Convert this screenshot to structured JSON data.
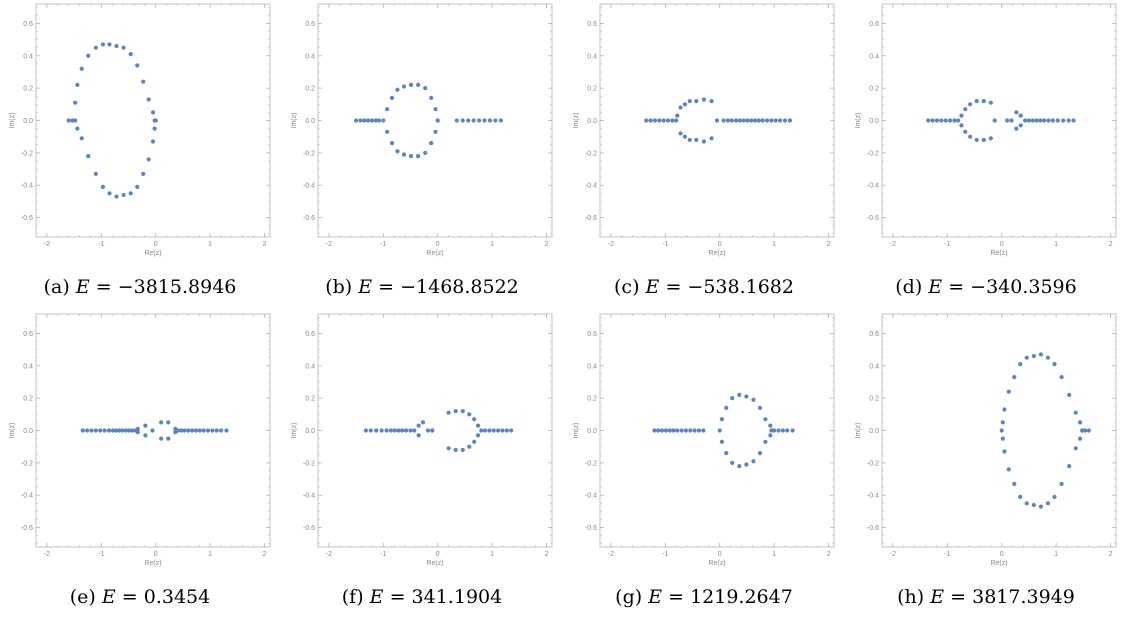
{
  "style": {
    "point_color": "#5b84c4",
    "frame_color": "#b5b5b5"
  },
  "axes": {
    "xlabel": "Re(z)",
    "ylabel": "Im(z)",
    "xlim": [
      -2.2,
      2.1
    ],
    "ylim": [
      -0.72,
      0.72
    ],
    "xticks": [
      -2,
      -1,
      0,
      1,
      2
    ],
    "yticks": [
      -0.6,
      -0.4,
      -0.2,
      0.0,
      0.2,
      0.4,
      0.6
    ],
    "xtick_labels": [
      "-2",
      "-1",
      "0",
      "1",
      "2"
    ],
    "ytick_labels": [
      "-0.6",
      "-0.4",
      "-0.2",
      "0.0",
      "0.2",
      "0.4",
      "0.6"
    ]
  },
  "chart_data": [
    {
      "type": "scatter",
      "title": "",
      "caption": {
        "label": "(a)",
        "value": "−3815.8946"
      },
      "x": [
        -1.6,
        -1.53,
        -1.48,
        -1.44,
        -1.36,
        -1.24,
        -1.1,
        -0.97,
        -0.85,
        -0.72,
        -0.59,
        -0.46,
        -0.34,
        -0.23,
        -0.13,
        -0.05,
        -0.02,
        0.0,
        -0.02,
        -0.05,
        -0.13,
        -0.23,
        -0.34,
        -0.46,
        -0.59,
        -0.72,
        -0.85,
        -0.97,
        -1.1,
        -1.24,
        -1.36,
        -1.44,
        -1.48
      ],
      "y": [
        0.0,
        0.0,
        0.11,
        0.22,
        0.32,
        0.4,
        0.45,
        0.47,
        0.47,
        0.46,
        0.45,
        0.41,
        0.34,
        0.24,
        0.13,
        0.05,
        0.0,
        0.0,
        -0.05,
        -0.13,
        -0.24,
        -0.33,
        -0.41,
        -0.45,
        -0.46,
        -0.47,
        -0.45,
        -0.41,
        -0.33,
        -0.22,
        -0.11,
        -0.05,
        0.0
      ]
    },
    {
      "type": "scatter",
      "title": "",
      "caption": {
        "label": "(b)",
        "value": "−1468.8522"
      },
      "x": [
        -1.5,
        -1.42,
        -1.35,
        -1.28,
        -1.21,
        -1.14,
        -1.08,
        -1.0,
        -0.93,
        -0.84,
        -0.74,
        -0.62,
        -0.49,
        -0.36,
        -0.23,
        -0.12,
        -0.04,
        0.0,
        -0.04,
        -0.12,
        -0.23,
        -0.36,
        -0.49,
        -0.62,
        -0.74,
        -0.84,
        -0.93,
        0.35,
        0.46,
        0.56,
        0.66,
        0.76,
        0.86,
        0.96,
        1.06,
        1.16
      ],
      "y": [
        0.0,
        0.0,
        0.0,
        0.0,
        0.0,
        0.0,
        0.0,
        0.0,
        0.07,
        0.14,
        0.19,
        0.21,
        0.22,
        0.22,
        0.2,
        0.14,
        0.07,
        0.0,
        -0.07,
        -0.14,
        -0.2,
        -0.22,
        -0.22,
        -0.21,
        -0.19,
        -0.14,
        -0.07,
        0.0,
        0.0,
        0.0,
        0.0,
        0.0,
        0.0,
        0.0,
        0.0,
        0.0
      ]
    },
    {
      "type": "scatter",
      "title": "",
      "caption": {
        "label": "(c)",
        "value": "−538.1682"
      },
      "x": [
        -1.35,
        -1.27,
        -1.19,
        -1.11,
        -1.03,
        -0.95,
        -0.87,
        -0.8,
        -0.78,
        -0.72,
        -0.64,
        -0.55,
        -0.43,
        -0.29,
        -0.15,
        -0.05,
        -0.15,
        -0.29,
        -0.43,
        -0.55,
        -0.64,
        -0.72,
        0.07,
        0.15,
        0.22,
        0.3,
        0.37,
        0.44,
        0.51,
        0.58,
        0.65,
        0.72,
        0.79,
        0.87,
        0.95,
        1.03,
        1.11,
        1.2,
        1.29
      ],
      "y": [
        0.0,
        0.0,
        0.0,
        0.0,
        0.0,
        0.0,
        0.0,
        0.0,
        0.03,
        0.08,
        0.1,
        0.12,
        0.12,
        0.13,
        0.12,
        0.0,
        -0.11,
        -0.13,
        -0.12,
        -0.12,
        -0.1,
        -0.08,
        0.0,
        0.0,
        0.0,
        0.0,
        0.0,
        0.0,
        0.0,
        0.0,
        0.0,
        0.0,
        0.0,
        0.0,
        0.0,
        0.0,
        0.0,
        0.0,
        0.0
      ]
    },
    {
      "type": "scatter",
      "title": "",
      "caption": {
        "label": "(d)",
        "value": "−340.3596"
      },
      "x": [
        -1.35,
        -1.27,
        -1.19,
        -1.11,
        -1.03,
        -0.95,
        -0.87,
        -0.8,
        -0.74,
        -0.67,
        -0.58,
        -0.46,
        -0.33,
        -0.2,
        -0.13,
        -0.2,
        -0.33,
        -0.46,
        -0.58,
        -0.67,
        -0.74,
        0.1,
        0.18,
        0.27,
        0.35,
        0.27,
        0.35,
        0.43,
        0.5,
        0.57,
        0.64,
        0.71,
        0.78,
        0.86,
        0.94,
        1.03,
        1.13,
        1.23,
        1.32
      ],
      "y": [
        0.0,
        0.0,
        0.0,
        0.0,
        0.0,
        0.0,
        0.0,
        0.0,
        0.03,
        0.07,
        0.1,
        0.12,
        0.12,
        0.11,
        0.0,
        -0.11,
        -0.12,
        -0.12,
        -0.1,
        -0.07,
        -0.03,
        0.0,
        0.0,
        0.05,
        0.03,
        -0.05,
        -0.03,
        0.0,
        0.0,
        0.0,
        0.0,
        0.0,
        0.0,
        0.0,
        0.0,
        0.0,
        0.0,
        0.0,
        0.0
      ]
    },
    {
      "type": "scatter",
      "title": "",
      "caption": {
        "label": "(e)",
        "value": "0.3454"
      },
      "x": [
        -1.34,
        -1.26,
        -1.18,
        -1.1,
        -1.02,
        -0.94,
        -0.86,
        -0.79,
        -0.73,
        -0.67,
        -0.61,
        -0.55,
        -0.49,
        -0.43,
        -0.37,
        -0.33,
        -0.33,
        -0.19,
        -0.19,
        -0.06,
        0.1,
        0.1,
        0.23,
        0.23,
        0.36,
        0.36,
        0.41,
        0.47,
        0.53,
        0.6,
        0.67,
        0.74,
        0.81,
        0.88,
        0.96,
        1.04,
        1.12,
        1.2,
        1.3
      ],
      "y": [
        0.0,
        0.0,
        0.0,
        0.0,
        0.0,
        0.0,
        0.0,
        0.0,
        0.0,
        0.0,
        0.0,
        0.0,
        0.0,
        0.0,
        0.0,
        0.01,
        -0.01,
        0.03,
        -0.03,
        0.0,
        0.05,
        -0.05,
        0.05,
        -0.05,
        0.01,
        -0.01,
        0.0,
        0.0,
        0.0,
        0.0,
        0.0,
        0.0,
        0.0,
        0.0,
        0.0,
        0.0,
        0.0,
        0.0,
        0.0
      ]
    },
    {
      "type": "scatter",
      "title": "",
      "caption": {
        "label": "(f)",
        "value": "341.1904"
      },
      "x": [
        -1.32,
        -1.23,
        -1.13,
        -1.03,
        -0.94,
        -0.86,
        -0.79,
        -0.72,
        -0.65,
        -0.58,
        -0.5,
        -0.43,
        -0.35,
        -0.35,
        -0.27,
        -0.18,
        -0.1,
        -0.1,
        0.2,
        0.33,
        0.46,
        0.58,
        0.67,
        0.74,
        0.8,
        0.87,
        0.95,
        1.03,
        1.11,
        1.19,
        1.27,
        1.35,
        0.2,
        0.33,
        0.46,
        0.58,
        0.67,
        0.74
      ],
      "y": [
        0.0,
        0.0,
        0.0,
        0.0,
        0.0,
        0.0,
        0.0,
        0.0,
        0.0,
        0.0,
        0.0,
        0.0,
        0.03,
        -0.03,
        0.05,
        0.0,
        0.0,
        0.0,
        0.11,
        0.12,
        0.12,
        0.1,
        0.07,
        0.03,
        0.0,
        0.0,
        0.0,
        0.0,
        0.0,
        0.0,
        0.0,
        0.0,
        -0.11,
        -0.12,
        -0.12,
        -0.1,
        -0.07,
        -0.03
      ]
    },
    {
      "type": "scatter",
      "title": "",
      "caption": {
        "label": "(g)",
        "value": "1219.2647"
      },
      "x": [
        -1.2,
        -1.13,
        -1.06,
        -0.99,
        -0.92,
        -0.85,
        -0.78,
        -0.7,
        -0.62,
        -0.54,
        -0.46,
        -0.38,
        -0.3,
        0.0,
        0.04,
        0.12,
        0.23,
        0.36,
        0.49,
        0.62,
        0.74,
        0.84,
        0.93,
        0.95,
        1.0,
        1.08,
        1.16,
        1.24,
        1.34,
        0.04,
        0.12,
        0.23,
        0.36,
        0.49,
        0.62,
        0.74,
        0.84,
        0.93
      ],
      "y": [
        0.0,
        0.0,
        0.0,
        0.0,
        0.0,
        0.0,
        0.0,
        0.0,
        0.0,
        0.0,
        0.0,
        0.0,
        0.0,
        0.0,
        0.07,
        0.14,
        0.2,
        0.22,
        0.21,
        0.19,
        0.14,
        0.07,
        0.03,
        0.0,
        0.0,
        0.0,
        0.0,
        0.0,
        0.0,
        -0.07,
        -0.14,
        -0.2,
        -0.22,
        -0.21,
        -0.19,
        -0.14,
        -0.07,
        -0.03
      ]
    },
    {
      "type": "scatter",
      "title": "",
      "caption": {
        "label": "(h)",
        "value": "3817.3949"
      },
      "x": [
        0.0,
        0.02,
        0.05,
        0.13,
        0.23,
        0.34,
        0.46,
        0.59,
        0.72,
        0.85,
        0.97,
        1.1,
        1.24,
        1.36,
        1.44,
        1.48,
        1.53,
        1.6,
        0.02,
        0.05,
        0.13,
        0.23,
        0.34,
        0.46,
        0.59,
        0.72,
        0.85,
        0.97,
        1.1,
        1.24,
        1.36,
        1.44,
        1.48
      ],
      "y": [
        0.0,
        0.05,
        0.13,
        0.24,
        0.33,
        0.41,
        0.45,
        0.46,
        0.47,
        0.45,
        0.41,
        0.33,
        0.22,
        0.11,
        0.05,
        0.0,
        0.0,
        0.0,
        -0.05,
        -0.13,
        -0.24,
        -0.33,
        -0.41,
        -0.45,
        -0.46,
        -0.47,
        -0.45,
        -0.41,
        -0.33,
        -0.22,
        -0.11,
        -0.05,
        0.0
      ]
    }
  ]
}
